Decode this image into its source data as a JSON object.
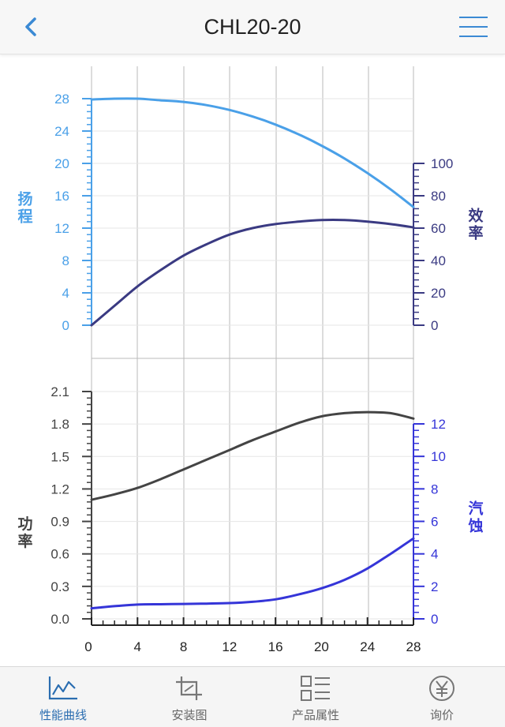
{
  "header": {
    "title": "CHL20-20"
  },
  "icons": {
    "back": "chevron-left-icon",
    "menu": "hamburger-menu-icon"
  },
  "colors": {
    "head": "#4aa0e8",
    "efficiency": "#3a3a82",
    "power": "#444444",
    "npsh": "#3535d8",
    "grid": "#d0d0d0",
    "accent": "#2a6db0"
  },
  "chart_data": [
    {
      "type": "line",
      "x": [
        0,
        2,
        4,
        6,
        8,
        10,
        12,
        14,
        16,
        18,
        20,
        22,
        24,
        26,
        28
      ],
      "xlim": [
        0,
        28
      ],
      "x_ticks": [
        0,
        4,
        8,
        12,
        16,
        20,
        24,
        28
      ],
      "grid": true,
      "left_axis": {
        "label": "扬程",
        "ylim": [
          0,
          28
        ],
        "ticks": [
          "0",
          "4",
          "8",
          "12",
          "16",
          "20",
          "24",
          "28"
        ]
      },
      "right_axis": {
        "label": "效率",
        "ylim": [
          0,
          140
        ],
        "ticks": [
          "0",
          "20",
          "40",
          "60",
          "80",
          "100"
        ]
      },
      "series": [
        {
          "name": "扬程",
          "axis": "left",
          "color_key": "head",
          "values": [
            27.9,
            28.0,
            28.0,
            27.8,
            27.6,
            27.2,
            26.6,
            25.8,
            24.8,
            23.6,
            22.2,
            20.6,
            18.8,
            16.8,
            14.6
          ]
        },
        {
          "name": "效率",
          "axis": "right",
          "color_key": "efficiency",
          "values": [
            0,
            12,
            24,
            34,
            43,
            50,
            56,
            60,
            62.5,
            64,
            65,
            65,
            64,
            62.5,
            60.5
          ]
        }
      ]
    },
    {
      "type": "line",
      "x": [
        0,
        2,
        4,
        6,
        8,
        10,
        12,
        14,
        16,
        18,
        20,
        22,
        24,
        26,
        28
      ],
      "xlim": [
        0,
        28
      ],
      "x_ticks": [
        0,
        4,
        8,
        12,
        16,
        20,
        24,
        28
      ],
      "grid": true,
      "left_axis": {
        "label": "功率",
        "ylim": [
          0,
          2.1
        ],
        "ticks": [
          "0.0",
          "0.3",
          "0.6",
          "0.9",
          "1.2",
          "1.5",
          "1.8",
          "2.1"
        ]
      },
      "right_axis": {
        "label": "汽蚀",
        "ylim": [
          0,
          12.4
        ],
        "ticks": [
          "0",
          "2",
          "4",
          "6",
          "8",
          "10",
          "12"
        ]
      },
      "series": [
        {
          "name": "功率",
          "axis": "left",
          "color_key": "power",
          "values": [
            1.1,
            1.15,
            1.21,
            1.29,
            1.38,
            1.47,
            1.56,
            1.65,
            1.73,
            1.81,
            1.87,
            1.9,
            1.91,
            1.9,
            1.85
          ]
        },
        {
          "name": "汽蚀",
          "axis": "right",
          "color_key": "npsh",
          "values": [
            0.65,
            0.78,
            0.88,
            0.9,
            0.92,
            0.94,
            0.97,
            1.05,
            1.2,
            1.5,
            1.88,
            2.4,
            3.1,
            4.0,
            4.95
          ]
        }
      ]
    }
  ],
  "tabs": [
    {
      "label": "性能曲线",
      "icon": "line-chart-icon",
      "active": true
    },
    {
      "label": "安装图",
      "icon": "crop-frame-icon",
      "active": false
    },
    {
      "label": "产品属性",
      "icon": "list-icon",
      "active": false
    },
    {
      "label": "询价",
      "icon": "yen-coin-icon",
      "active": false
    }
  ]
}
